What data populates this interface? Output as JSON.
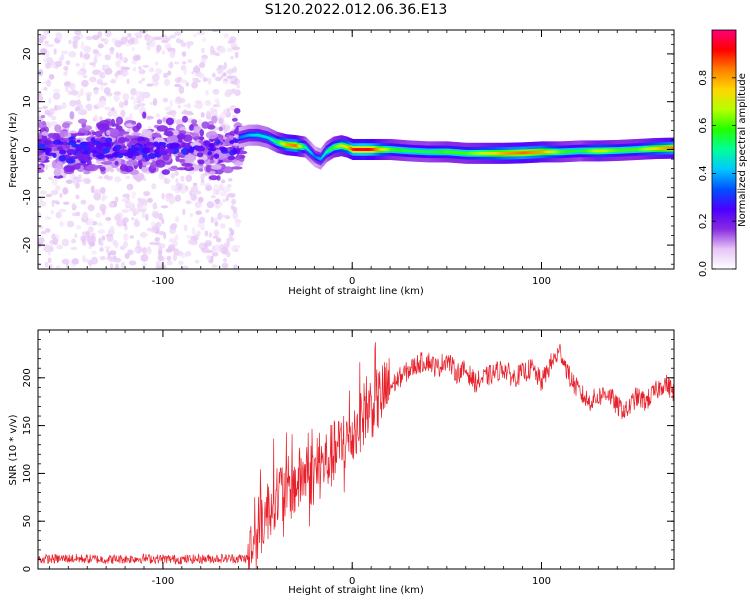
{
  "figure_title": "S120.2022.012.06.36.E13",
  "chart_data": [
    {
      "type": "heatmap",
      "title": "",
      "xlabel": "Height of straight line (km)",
      "ylabel": "Frequency (Hz)",
      "xlim": [
        -166,
        170
      ],
      "ylim": [
        -25,
        25
      ],
      "xticks": [
        -100,
        0,
        100
      ],
      "yticks": [
        -20,
        -10,
        0,
        10,
        20
      ],
      "grid": false,
      "colorbar": {
        "label": "Normalized spectral amplitude",
        "range": [
          0,
          1
        ],
        "ticks": [
          "0.0",
          "0.2",
          "0.4",
          "0.6",
          "0.8"
        ],
        "colors": [
          "#ffffff",
          "#e6c6f5",
          "#8a2be2",
          "#4b00ff",
          "#0050ff",
          "#00c8ff",
          "#00ff9a",
          "#22ff00",
          "#b4ff00",
          "#ffd700",
          "#ff8000",
          "#ff0000",
          "#ff0077"
        ]
      },
      "ridge": {
        "x": [
          -60,
          -55,
          -50,
          -45,
          -40,
          -35,
          -30,
          -25,
          -20,
          -17,
          -14,
          -10,
          -6,
          -3,
          0,
          5,
          10,
          20,
          30,
          40,
          50,
          60,
          70,
          80,
          90,
          100,
          110,
          120,
          130,
          140,
          150,
          160,
          170
        ],
        "frequency": [
          2.5,
          3,
          3,
          2.5,
          1.5,
          1,
          0.8,
          0.5,
          -1.5,
          -2,
          -0.5,
          0.5,
          0.8,
          0.5,
          0,
          0,
          0,
          0,
          -0.3,
          -0.5,
          -0.5,
          -0.8,
          -0.8,
          -0.8,
          -0.7,
          -0.5,
          -0.5,
          -0.3,
          -0.3,
          -0.2,
          0,
          0.2,
          0.3
        ],
        "amplitude": [
          0.35,
          0.4,
          0.45,
          0.45,
          0.55,
          0.8,
          0.85,
          0.5,
          0.35,
          0.4,
          0.5,
          0.6,
          0.7,
          0.75,
          0.9,
          0.95,
          0.9,
          0.6,
          0.55,
          0.55,
          0.6,
          0.6,
          0.7,
          0.8,
          0.85,
          0.8,
          0.6,
          0.55,
          0.7,
          0.6,
          0.6,
          0.75,
          0.85
        ]
      }
    },
    {
      "type": "line",
      "title": "",
      "xlabel": "Height of straight line (km)",
      "ylabel": "SNR (10 * v/v)",
      "xlim": [
        -166,
        170
      ],
      "ylim": [
        0,
        250
      ],
      "xticks": [
        -100,
        0,
        100
      ],
      "yticks": [
        0,
        50,
        100,
        150,
        200
      ],
      "grid": false,
      "color": "#e8202a",
      "series": [
        {
          "x": [
            -166,
            -150,
            -130,
            -110,
            -90,
            -70,
            -55,
            -52,
            -50,
            -45,
            -42,
            -38,
            -35,
            -30,
            -25,
            -20,
            -15,
            -10,
            -5,
            0,
            5,
            10,
            15,
            20,
            25,
            30,
            35,
            40,
            45,
            50,
            55,
            60,
            65,
            70,
            75,
            80,
            85,
            90,
            95,
            100,
            105,
            110,
            115,
            120,
            125,
            130,
            135,
            140,
            145,
            150,
            155,
            160,
            165,
            170
          ],
          "values": [
            10,
            11,
            10,
            11,
            10,
            11,
            11,
            30,
            40,
            60,
            75,
            80,
            82,
            88,
            100,
            100,
            110,
            120,
            130,
            140,
            160,
            170,
            180,
            190,
            200,
            208,
            215,
            218,
            210,
            220,
            205,
            208,
            195,
            200,
            205,
            210,
            200,
            205,
            210,
            195,
            215,
            228,
            200,
            185,
            175,
            180,
            185,
            170,
            165,
            180,
            175,
            185,
            195,
            185
          ]
        }
      ]
    }
  ]
}
